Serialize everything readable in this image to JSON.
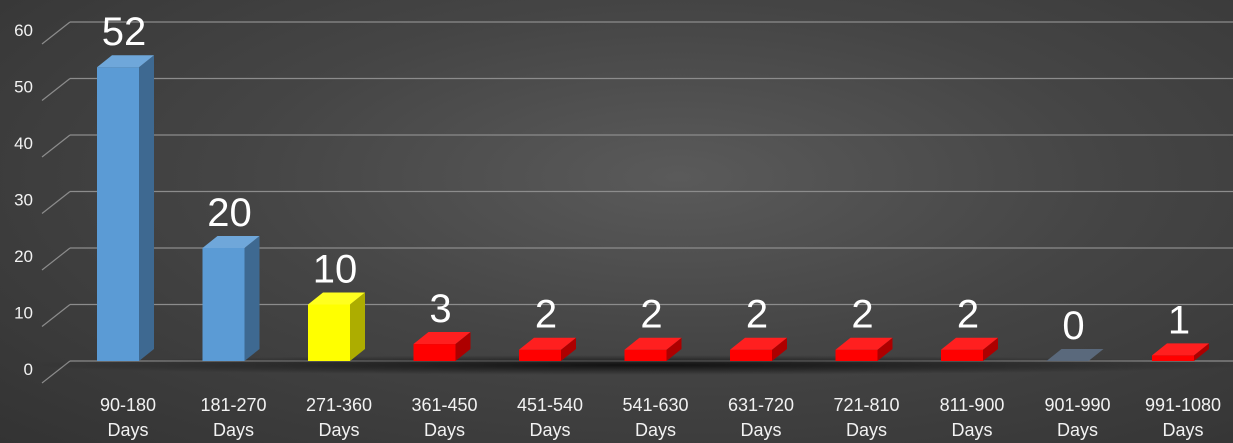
{
  "chart_data": {
    "type": "bar",
    "title": "",
    "xlabel": "",
    "ylabel": "",
    "ylim": [
      0,
      60
    ],
    "yticks": [
      0,
      10,
      20,
      30,
      40,
      50,
      60
    ],
    "grid": true,
    "style": "3d-column",
    "categories": [
      [
        "90-180",
        "Days"
      ],
      [
        "181-270",
        "Days"
      ],
      [
        "271-360",
        "Days"
      ],
      [
        "361-450",
        "Days"
      ],
      [
        "451-540",
        "Days"
      ],
      [
        "541-630",
        "Days"
      ],
      [
        "631-720",
        "Days"
      ],
      [
        "721-810",
        "Days"
      ],
      [
        "811-900",
        "Days"
      ],
      [
        "901-990",
        "Days"
      ],
      [
        "991-1080",
        "Days"
      ]
    ],
    "values": [
      52,
      20,
      10,
      3,
      2,
      2,
      2,
      2,
      2,
      0,
      1
    ],
    "data_labels": [
      "52",
      "20",
      "10",
      "3",
      "2",
      "2",
      "2",
      "2",
      "2",
      "0",
      "1"
    ],
    "bar_colors": [
      "#5b9bd5",
      "#5b9bd5",
      "#ffff00",
      "#ff0000",
      "#ff0000",
      "#ff0000",
      "#ff0000",
      "#ff0000",
      "#ff0000",
      "#44546a",
      "#ff0000"
    ],
    "colors": {
      "grid": "#8c8c8c",
      "text": "#f2f2f2"
    }
  }
}
